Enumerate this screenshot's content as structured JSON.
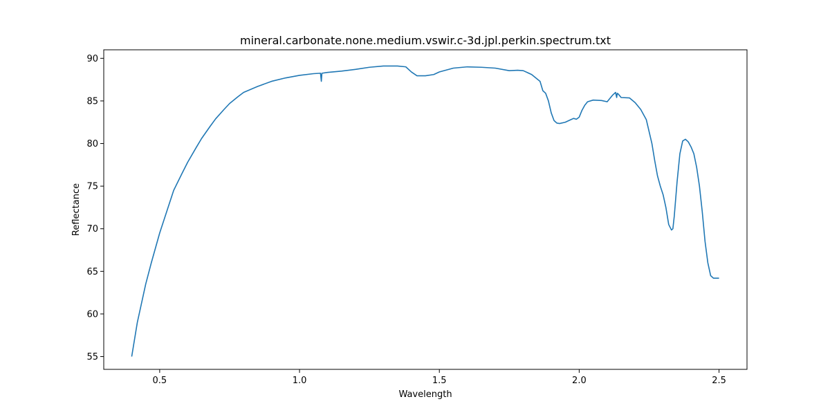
{
  "chart_data": {
    "type": "line",
    "title": "mineral.carbonate.none.medium.vswir.c-3d.jpl.perkin.spectrum.txt",
    "xlabel": "Wavelength",
    "ylabel": "Reflectance",
    "xlim": [
      0.3,
      2.6
    ],
    "ylim": [
      53.5,
      91.0
    ],
    "x_ticks": [
      0.5,
      1.0,
      1.5,
      2.0,
      2.5
    ],
    "x_tick_labels": [
      "0.5",
      "1.0",
      "1.5",
      "2.0",
      "2.5"
    ],
    "y_ticks": [
      55,
      60,
      65,
      70,
      75,
      80,
      85,
      90
    ],
    "y_tick_labels": [
      "55",
      "60",
      "65",
      "70",
      "75",
      "80",
      "85",
      "90"
    ],
    "grid": false,
    "line_color": "#1f77b4",
    "series": [
      {
        "x": [
          0.4,
          0.42,
          0.45,
          0.47,
          0.5,
          0.53,
          0.55,
          0.58,
          0.6,
          0.63,
          0.65,
          0.68,
          0.7,
          0.73,
          0.75,
          0.78,
          0.8,
          0.85,
          0.9,
          0.95,
          1.0,
          1.05,
          1.075,
          1.078,
          1.08,
          1.1,
          1.15,
          1.2,
          1.25,
          1.3,
          1.35,
          1.38,
          1.4,
          1.42,
          1.45,
          1.48,
          1.5,
          1.55,
          1.6,
          1.65,
          1.7,
          1.75,
          1.78,
          1.8,
          1.83,
          1.86,
          1.87,
          1.88,
          1.89,
          1.9,
          1.91,
          1.92,
          1.93,
          1.95,
          1.97,
          1.98,
          1.99,
          2.0,
          2.01,
          2.02,
          2.03,
          2.05,
          2.08,
          2.1,
          2.12,
          2.13,
          2.134,
          2.136,
          2.14,
          2.15,
          2.18,
          2.2,
          2.22,
          2.24,
          2.26,
          2.27,
          2.28,
          2.29,
          2.3,
          2.31,
          2.32,
          2.33,
          2.335,
          2.34,
          2.35,
          2.36,
          2.37,
          2.38,
          2.39,
          2.4,
          2.41,
          2.42,
          2.43,
          2.44,
          2.45,
          2.46,
          2.47,
          2.48,
          2.49,
          2.5
        ],
        "y": [
          55.0,
          59.0,
          63.5,
          66.0,
          69.5,
          72.5,
          74.5,
          76.5,
          77.8,
          79.5,
          80.6,
          82.0,
          82.9,
          84.0,
          84.7,
          85.5,
          86.0,
          86.7,
          87.3,
          87.7,
          88.0,
          88.2,
          88.25,
          87.3,
          88.25,
          88.35,
          88.5,
          88.7,
          88.95,
          89.1,
          89.1,
          89.0,
          88.4,
          87.95,
          87.95,
          88.1,
          88.4,
          88.85,
          89.0,
          88.95,
          88.85,
          88.55,
          88.6,
          88.55,
          88.1,
          87.3,
          86.2,
          85.9,
          85.0,
          83.6,
          82.7,
          82.4,
          82.35,
          82.5,
          82.8,
          82.95,
          82.85,
          83.1,
          83.9,
          84.5,
          84.9,
          85.1,
          85.05,
          84.9,
          85.7,
          86.0,
          85.4,
          85.9,
          85.8,
          85.4,
          85.35,
          84.8,
          84.0,
          82.8,
          80.0,
          78.0,
          76.2,
          75.0,
          74.0,
          72.5,
          70.5,
          69.85,
          70.0,
          71.5,
          75.5,
          78.8,
          80.3,
          80.5,
          80.2,
          79.6,
          78.8,
          77.2,
          75.0,
          72.0,
          68.5,
          66.0,
          64.5,
          64.2,
          64.2,
          64.2
        ]
      }
    ]
  }
}
